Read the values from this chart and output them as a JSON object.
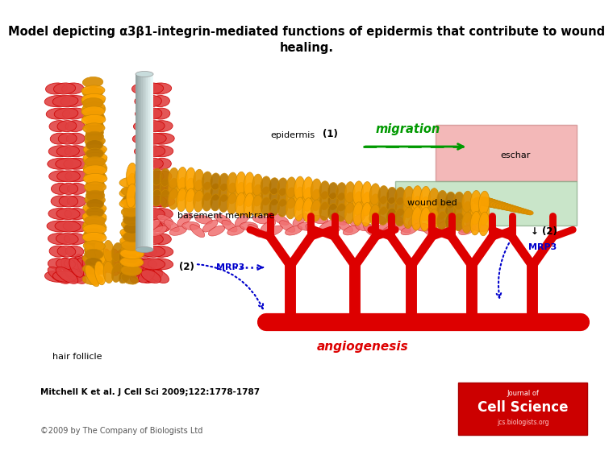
{
  "title_line1": "Model depicting α3β1-integrin-mediated functions of epidermis that contribute to wound",
  "title_line2": "healing.",
  "title_fontsize": 10.5,
  "title_color": "#000000",
  "bg_color": "#ffffff",
  "fig_width": 7.2,
  "fig_height": 5.4,
  "citation": "Mitchell K et al. J Cell Sci 2009;122:1778-1787",
  "copyright": "©2009 by The Company of Biologists Ltd",
  "eschar_color": "#f0a0a0",
  "wound_bed_color": "#b8ddb8",
  "vessel_color": "#dd0000",
  "migration_color": "#009900",
  "mrp3_color": "#0000cc",
  "angio_color": "#dd0000"
}
